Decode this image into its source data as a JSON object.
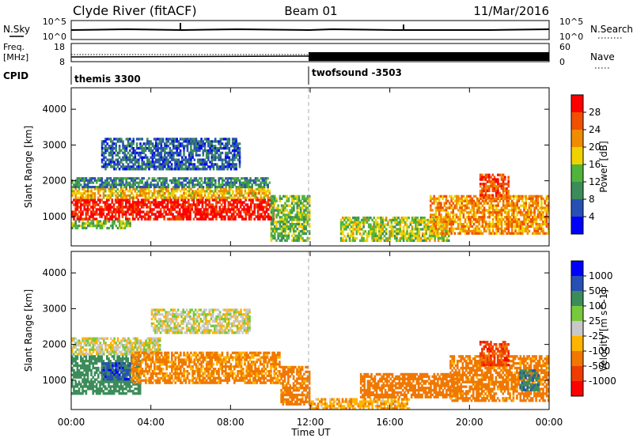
{
  "header": {
    "station": "Clyde River (fitACF)",
    "beam": "Beam 01",
    "date": "11/Mar/2016"
  },
  "noise_panel": {
    "left_label": "N.Sky",
    "left_ticks": [
      "10^5",
      "10^0"
    ],
    "right_ticks": [
      "10^5",
      "10^0"
    ],
    "right_label": "N.Search"
  },
  "freq_panel": {
    "left_label_1": "Freq.",
    "left_label_2": "[MHz]",
    "left_ticks": [
      "18",
      "8"
    ],
    "right_ticks": [
      "60",
      "0"
    ],
    "right_label": "Nave"
  },
  "cpid_panel": {
    "label": "CPID",
    "programs": [
      {
        "name": "themis 3300",
        "start": "00:00"
      },
      {
        "name": "twofsound -3503",
        "start": "12:00"
      }
    ]
  },
  "colors": {
    "power_scale": [
      "#0000ff",
      "#2850b4",
      "#3c8c5a",
      "#50b43c",
      "#f0d200",
      "#f08c00",
      "#f05000",
      "#ff0000"
    ],
    "velocity_scale": [
      "#ff0000",
      "#f03c00",
      "#f07800",
      "#ffb400",
      "#c8c8c8",
      "#78c83c",
      "#3c8c5a",
      "#2850b4",
      "#0000ff"
    ]
  },
  "chart_data": [
    {
      "type": "heatmap",
      "panel": "power",
      "xlabel": "",
      "ylabel": "Slant Range [km]",
      "yticks": [
        "1000",
        "2000",
        "3000",
        "4000"
      ],
      "ylim": [
        180,
        4600
      ],
      "xlim": [
        "00:00",
        "24:00"
      ],
      "colorbar_label": "Power [dB]",
      "colorbar_ticks": [
        "4",
        "8",
        "12",
        "16",
        "20",
        "24",
        "28"
      ],
      "regions": [
        {
          "t0": 0.0,
          "t1": 10.2,
          "r0": 900,
          "r1": 1500,
          "value": 30
        },
        {
          "t0": 0.0,
          "t1": 10.0,
          "r0": 1500,
          "r1": 1800,
          "value": 20
        },
        {
          "t0": 0.0,
          "t1": 10.0,
          "r0": 1800,
          "r1": 2100,
          "value": 9
        },
        {
          "t0": 0.0,
          "t1": 3.0,
          "r0": 650,
          "r1": 900,
          "value": 14
        },
        {
          "t0": 1.5,
          "t1": 8.5,
          "r0": 2300,
          "r1": 3200,
          "value": 7
        },
        {
          "t0": 10.0,
          "t1": 12.0,
          "r0": 300,
          "r1": 1600,
          "value": 14
        },
        {
          "t0": 13.5,
          "t1": 19.0,
          "r0": 300,
          "r1": 1000,
          "value": 16
        },
        {
          "t0": 18.0,
          "t1": 24.0,
          "r0": 500,
          "r1": 1600,
          "value": 22
        },
        {
          "t0": 20.5,
          "t1": 22.0,
          "r0": 1500,
          "r1": 2200,
          "value": 26
        }
      ]
    },
    {
      "type": "heatmap",
      "panel": "velocity",
      "xlabel": "Time UT",
      "ylabel": "Slant Range [km]",
      "yticks": [
        "1000",
        "2000",
        "3000",
        "4000"
      ],
      "ylim": [
        180,
        4600
      ],
      "xlim": [
        "00:00",
        "24:00"
      ],
      "xticks": [
        "00:00",
        "04:00",
        "08:00",
        "12:00",
        "16:00",
        "20:00",
        "00:00"
      ],
      "colorbar_label": "Velocity [m s^-1]",
      "colorbar_ticks": [
        "1000",
        "500",
        "100",
        "25",
        "-25",
        "-100",
        "-500",
        "-1000"
      ],
      "regions": [
        {
          "t0": 0.0,
          "t1": 3.5,
          "r0": 600,
          "r1": 1700,
          "value": 300
        },
        {
          "t0": 1.5,
          "t1": 3.0,
          "r0": 1000,
          "r1": 1500,
          "value": 700
        },
        {
          "t0": 0.0,
          "t1": 4.5,
          "r0": 1700,
          "r1": 2200,
          "value": 0
        },
        {
          "t0": 3.0,
          "t1": 10.5,
          "r0": 900,
          "r1": 1800,
          "value": -150
        },
        {
          "t0": 4.0,
          "t1": 9.0,
          "r0": 2300,
          "r1": 3000,
          "value": 0
        },
        {
          "t0": 10.5,
          "t1": 12.0,
          "r0": 300,
          "r1": 1400,
          "value": -200
        },
        {
          "t0": 12.0,
          "t1": 17.0,
          "r0": 180,
          "r1": 500,
          "value": -80
        },
        {
          "t0": 14.5,
          "t1": 19.5,
          "r0": 500,
          "r1": 1200,
          "value": -300
        },
        {
          "t0": 19.0,
          "t1": 24.0,
          "r0": 400,
          "r1": 1700,
          "value": -200
        },
        {
          "t0": 20.5,
          "t1": 22.0,
          "r0": 1400,
          "r1": 2100,
          "value": -700
        },
        {
          "t0": 22.5,
          "t1": 23.5,
          "r0": 700,
          "r1": 1300,
          "value": 400
        }
      ]
    }
  ]
}
